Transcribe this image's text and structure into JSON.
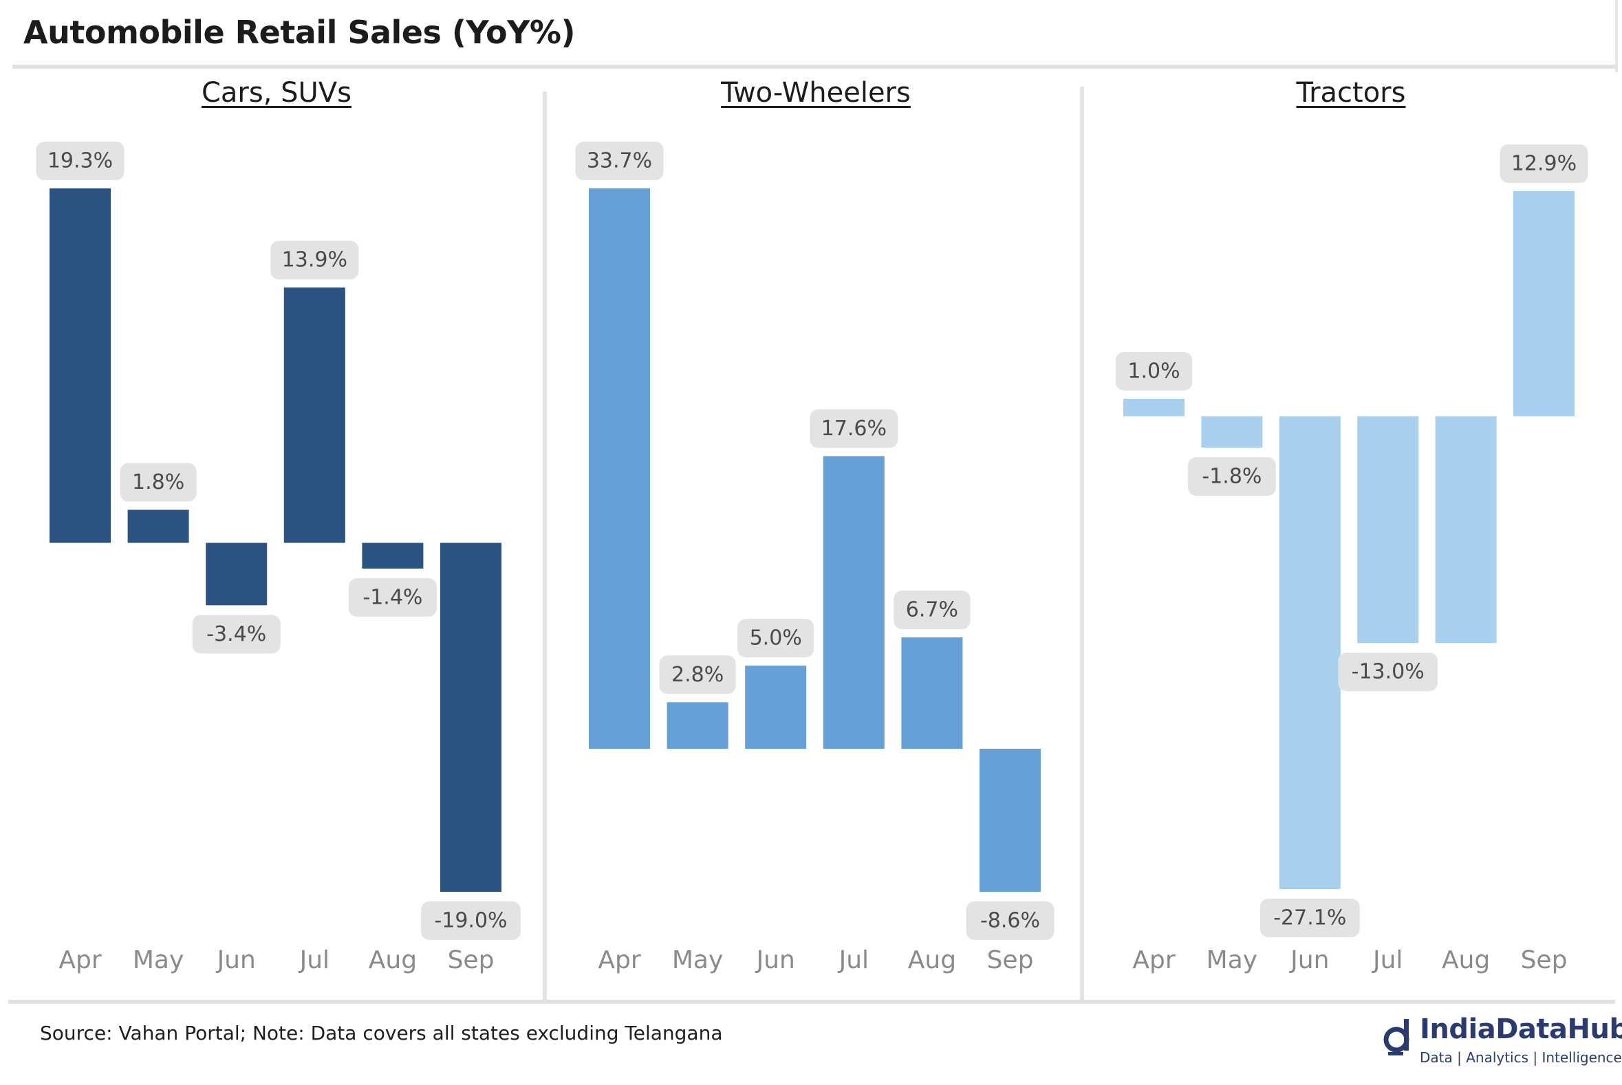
{
  "title": "Automobile Retail Sales (YoY%)",
  "footer": {
    "source": "Source: Vahan Portal; Note: Data covers all states excluding Telangana",
    "logo_name": "IndiaDataHub",
    "logo_tagline": "Data | Analytics | Intelligence"
  },
  "colors": {
    "cars": "#2c5282",
    "two_wheelers": "#67a0d6",
    "tractors": "#a9d0ef",
    "label_box": "#e3e3e3",
    "axis_text": "#8a8a8a",
    "logo": "#2c3b6e"
  },
  "chart_data": [
    {
      "type": "bar",
      "title": "Cars, SUVs",
      "categories": [
        "Apr",
        "May",
        "Jun",
        "Jul",
        "Aug",
        "Sep"
      ],
      "values": [
        19.3,
        1.8,
        -3.4,
        13.9,
        -1.4,
        -19.0
      ],
      "labels": [
        "19.3%",
        "1.8%",
        "-3.4%",
        "13.9%",
        "-1.4%",
        "-19.0%"
      ],
      "ylim": [
        -19.0,
        19.3
      ],
      "grid": false
    },
    {
      "type": "bar",
      "title": "Two-Wheelers",
      "categories": [
        "Apr",
        "May",
        "Jun",
        "Jul",
        "Aug",
        "Sep"
      ],
      "values": [
        33.7,
        2.8,
        5.0,
        17.6,
        6.7,
        -8.6
      ],
      "labels": [
        "33.7%",
        "2.8%",
        "5.0%",
        "17.6%",
        "6.7%",
        "-8.6%"
      ],
      "ylim": [
        -8.6,
        33.7
      ],
      "grid": false
    },
    {
      "type": "bar",
      "title": "Tractors",
      "categories": [
        "Apr",
        "May",
        "Jun",
        "Jul",
        "Aug",
        "Sep"
      ],
      "values": [
        1.0,
        -1.8,
        -27.1,
        -13.0,
        -13.0,
        12.9
      ],
      "labels": [
        "1.0%",
        "-1.8%",
        "-27.1%",
        "-13.0%",
        "",
        "12.9%"
      ],
      "ylim": [
        -27.1,
        12.9
      ],
      "grid": false
    }
  ]
}
